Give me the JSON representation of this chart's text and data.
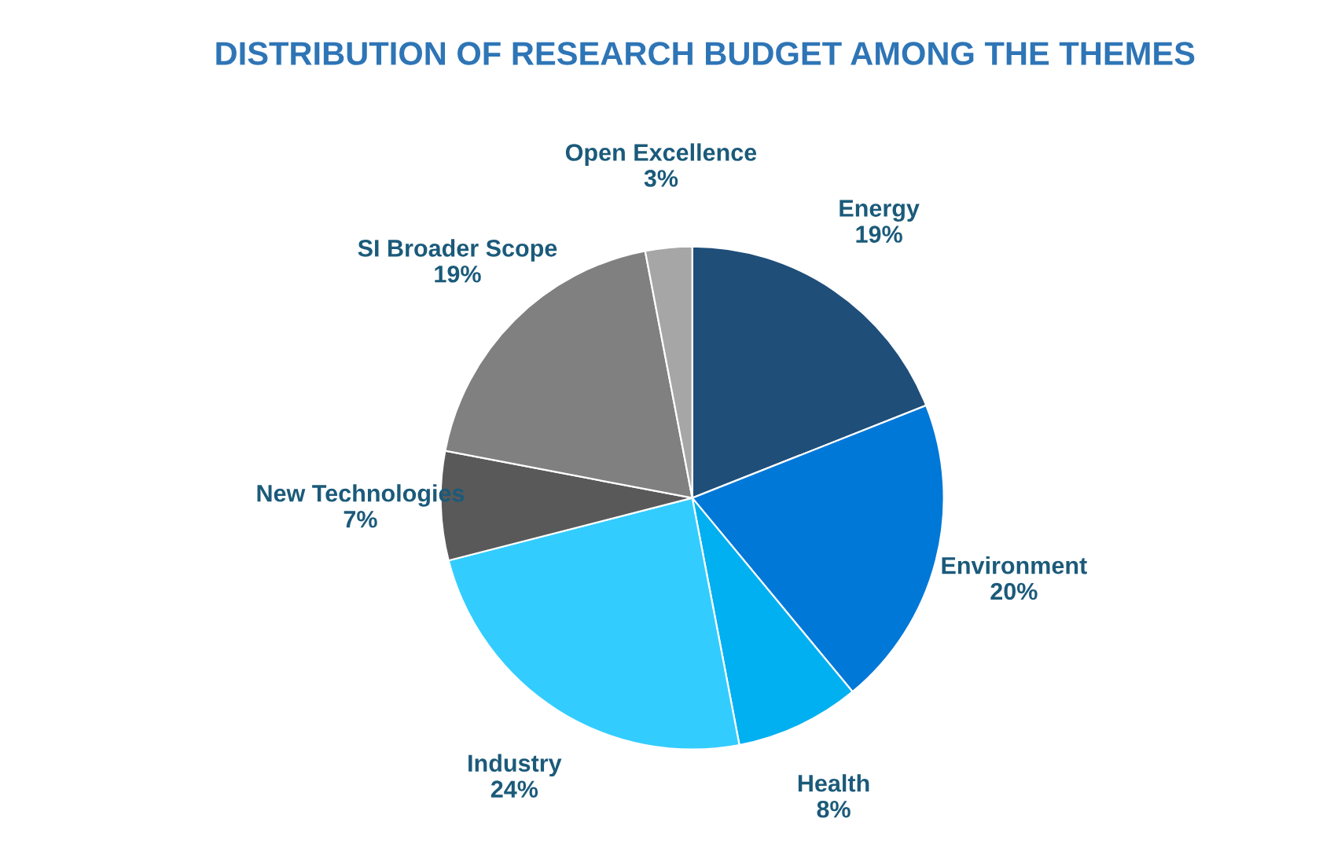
{
  "chart_data": {
    "type": "pie",
    "title": "DISTRIBUTION OF RESEARCH BUDGET AMONG THE THEMES",
    "categories": [
      "Energy",
      "Environment",
      "Health",
      "Industry",
      "New Technologies",
      "SI Broader Scope",
      "Open Excellence"
    ],
    "values": [
      19,
      20,
      8,
      24,
      7,
      19,
      3
    ],
    "value_labels": [
      "19%",
      "20%",
      "8%",
      "24%",
      "7%",
      "19%",
      "3%"
    ],
    "colors": [
      "#1f4e79",
      "#0078d7",
      "#00b0f0",
      "#33ccff",
      "#595959",
      "#808080",
      "#a6a6a6"
    ],
    "legend": false
  }
}
